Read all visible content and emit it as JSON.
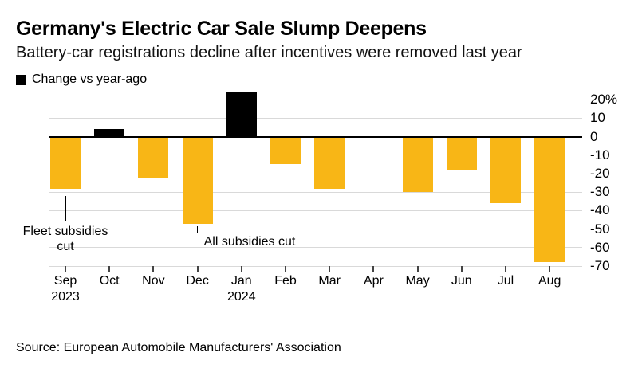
{
  "header": {
    "title": "Germany's Electric Car Sale Slump Deepens",
    "subtitle": "Battery-car registrations decline after incentives were removed last year"
  },
  "legend": {
    "label": "Change vs year-ago",
    "swatch_color": "#000000"
  },
  "footer": {
    "source": "Source: European Automobile Manufacturers' Association"
  },
  "colors": {
    "negative_bar": "#F8B616",
    "positive_bar": "#000000",
    "gridline": "#d9d9d9",
    "zero_line": "#000000",
    "background": "#ffffff"
  },
  "chart_data": {
    "type": "bar",
    "title": "Change vs year-ago",
    "unit": "%",
    "categories": [
      "Sep",
      "Oct",
      "Nov",
      "Dec",
      "Jan",
      "Feb",
      "Mar",
      "Apr",
      "May",
      "Jun",
      "Jul",
      "Aug"
    ],
    "x_secondary_labels": [
      {
        "index": 0,
        "label": "2023"
      },
      {
        "index": 4,
        "label": "2024"
      }
    ],
    "values": [
      -28,
      4,
      -22,
      -47,
      24,
      -15,
      -28,
      0,
      -30,
      -18,
      -36,
      -68
    ],
    "y_ticks": [
      20,
      10,
      0,
      -10,
      -20,
      -30,
      -40,
      -50,
      -60,
      -70
    ],
    "y_tick_labels": [
      "20%",
      "10",
      "0",
      "-10",
      "-20",
      "-30",
      "-40",
      "-50",
      "-60",
      "-70"
    ],
    "ylim": [
      -70,
      25
    ],
    "grid": "horizontal",
    "legend_position": "top-left",
    "annotations": [
      {
        "lines": [
          "Fleet subsidies",
          "cut"
        ],
        "anchor_index": 0,
        "align": "center"
      },
      {
        "lines": [
          "All subsidies cut"
        ],
        "anchor_index": 3,
        "align": "right-of"
      }
    ]
  }
}
